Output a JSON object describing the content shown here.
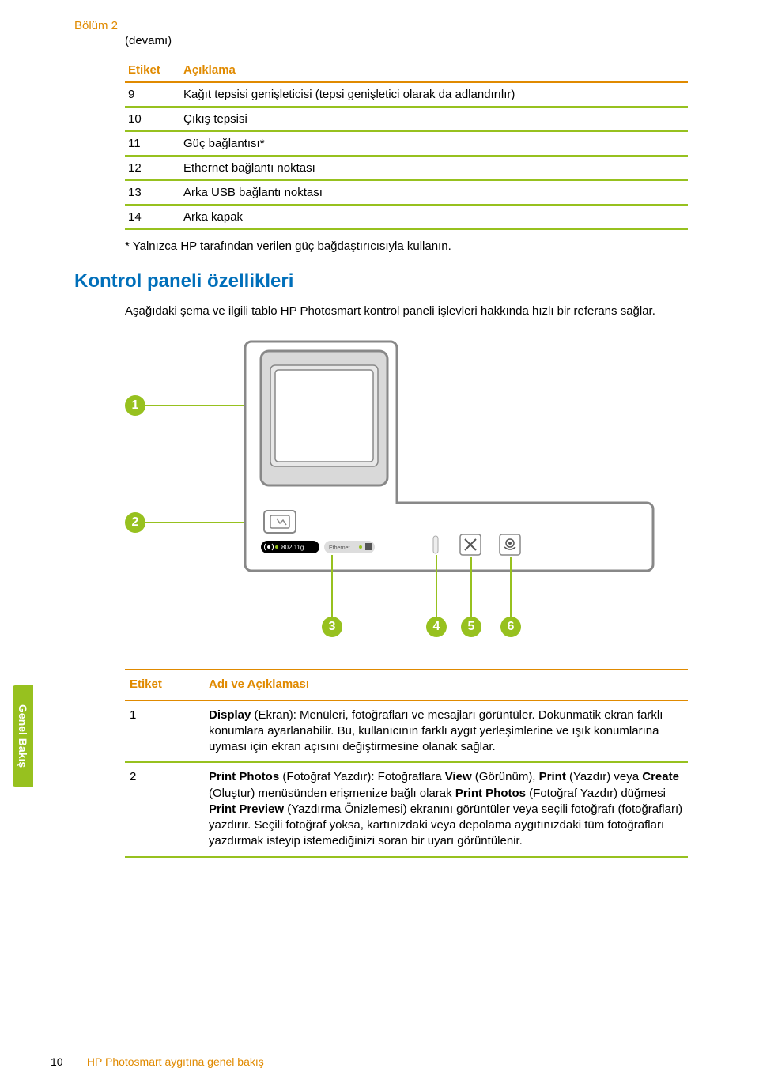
{
  "colors": {
    "orange": "#e08a00",
    "green": "#97c11f",
    "blue": "#006fba",
    "grey_panel": "#d9d9d9",
    "grey_stroke": "#888888",
    "bg": "#ffffff"
  },
  "chapter": "Bölüm 2",
  "continued": "(devamı)",
  "table1": {
    "headers": [
      "Etiket",
      "Açıklama"
    ],
    "rows": [
      [
        "9",
        "Kağıt tepsisi genişleticisi (tepsi genişletici olarak da adlandırılır)"
      ],
      [
        "10",
        "Çıkış tepsisi"
      ],
      [
        "11",
        "Güç bağlantısı*"
      ],
      [
        "12",
        "Ethernet bağlantı noktası"
      ],
      [
        "13",
        "Arka USB bağlantı noktası"
      ],
      [
        "14",
        "Arka kapak"
      ]
    ]
  },
  "footnote": "*   Yalnızca HP tarafından verilen güç bağdaştırıcısıyla kullanın.",
  "heading2": "Kontrol paneli özellikleri",
  "para1": "Aşağıdaki şema ve ilgili tablo HP Photosmart kontrol paneli işlevleri hakkında hızlı bir referans sağlar.",
  "diagram": {
    "markers": [
      "1",
      "2",
      "3",
      "4",
      "5",
      "6"
    ],
    "bar_label_wifi": "802.11g",
    "bar_label_eth": "Ethernet"
  },
  "sidetab": "Genel Bakış",
  "table2": {
    "headers": [
      "Etiket",
      "Adı ve Açıklaması"
    ],
    "rows": [
      {
        "n": "1",
        "html": "<b>Display</b> (Ekran): Menüleri, fotoğrafları ve mesajları görüntüler. Dokunmatik ekran farklı konumlara ayarlanabilir. Bu, kullanıcının farklı aygıt yerleşimlerine ve ışık konumlarına uyması için ekran açısını değiştirmesine olanak sağlar."
      },
      {
        "n": "2",
        "html": "<b>Print Photos</b> (Fotoğraf Yazdır): Fotoğraflara <b>View</b> (Görünüm), <b>Print</b> (Yazdır) veya <b>Create</b> (Oluştur) menüsünden erişmenize bağlı olarak <b>Print Photos</b> (Fotoğraf Yazdır) düğmesi <b>Print Preview</b> (Yazdırma Önizlemesi) ekranını görüntüler veya seçili fotoğrafı (fotoğrafları) yazdırır. Seçili fotoğraf yoksa, kartınızdaki veya depolama aygıtınızdaki tüm fotoğrafları yazdırmak isteyip istemediğinizi soran bir uyarı görüntülenir."
      }
    ]
  },
  "footer": {
    "page_num": "10",
    "title": "HP Photosmart aygıtına genel bakış"
  }
}
